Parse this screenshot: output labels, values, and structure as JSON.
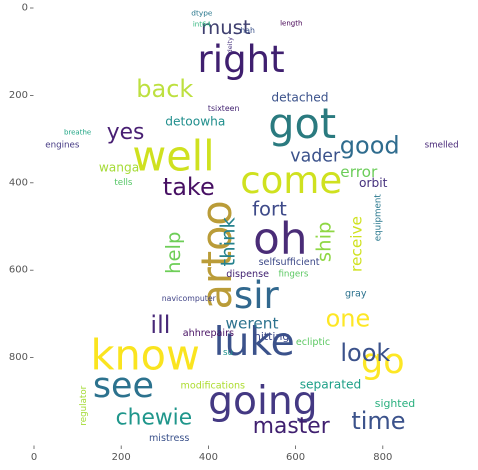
{
  "chart_data": {
    "type": "wordcloud",
    "title": "",
    "xlabel": "",
    "ylabel": "",
    "xlim": [
      0,
      1000
    ],
    "ylim": [
      0,
      1000
    ],
    "x_ticks": [
      0,
      200,
      400,
      600,
      800
    ],
    "y_ticks": [
      0,
      200,
      400,
      600,
      800
    ],
    "grid": false,
    "colormap": "viridis",
    "words": [
      {
        "text": "artoo",
        "x": 420,
        "y": 565,
        "size": 95,
        "color": "#ba9c38",
        "rotate": -90
      },
      {
        "text": "oh",
        "x": 565,
        "y": 530,
        "size": 100,
        "color": "#4a2c77"
      },
      {
        "text": "well",
        "x": 320,
        "y": 340,
        "size": 95,
        "color": "#cfe11f"
      },
      {
        "text": "got",
        "x": 615,
        "y": 265,
        "size": 95,
        "color": "#2a7a7f"
      },
      {
        "text": "right",
        "x": 475,
        "y": 118,
        "size": 85,
        "color": "#3f1f6f"
      },
      {
        "text": "come",
        "x": 590,
        "y": 395,
        "size": 85,
        "color": "#cfe11f"
      },
      {
        "text": "know",
        "x": 255,
        "y": 795,
        "size": 95,
        "color": "#fae41f"
      },
      {
        "text": "luke",
        "x": 505,
        "y": 765,
        "size": 90,
        "color": "#3b528b"
      },
      {
        "text": "going",
        "x": 525,
        "y": 900,
        "size": 90,
        "color": "#443983"
      },
      {
        "text": "go",
        "x": 800,
        "y": 810,
        "size": 80,
        "color": "#fde725"
      },
      {
        "text": "see",
        "x": 205,
        "y": 865,
        "size": 80,
        "color": "#2c728e"
      },
      {
        "text": "sir",
        "x": 510,
        "y": 658,
        "size": 85,
        "color": "#31688e"
      },
      {
        "text": "back",
        "x": 300,
        "y": 185,
        "size": 55,
        "color": "#bde040"
      },
      {
        "text": "must",
        "x": 440,
        "y": 45,
        "size": 45,
        "color": "#3f3f6f"
      },
      {
        "text": "good",
        "x": 770,
        "y": 315,
        "size": 55,
        "color": "#2f6c8e"
      },
      {
        "text": "yes",
        "x": 210,
        "y": 285,
        "size": 50,
        "color": "#481f73"
      },
      {
        "text": "vader",
        "x": 645,
        "y": 340,
        "size": 40,
        "color": "#3b528b"
      },
      {
        "text": "take",
        "x": 355,
        "y": 410,
        "size": 55,
        "color": "#471063"
      },
      {
        "text": "fort",
        "x": 540,
        "y": 460,
        "size": 45,
        "color": "#3e4a89"
      },
      {
        "text": "error",
        "x": 745,
        "y": 375,
        "size": 35,
        "color": "#6ccd5a"
      },
      {
        "text": "orbit",
        "x": 778,
        "y": 400,
        "size": 28,
        "color": "#46327e"
      },
      {
        "text": "wanga",
        "x": 195,
        "y": 365,
        "size": 28,
        "color": "#a5db36"
      },
      {
        "text": "detoowha",
        "x": 370,
        "y": 260,
        "size": 28,
        "color": "#218f8d"
      },
      {
        "text": "tells",
        "x": 205,
        "y": 400,
        "size": 20,
        "color": "#56c667"
      },
      {
        "text": "detached",
        "x": 610,
        "y": 205,
        "size": 28,
        "color": "#3b528b"
      },
      {
        "text": "help",
        "x": 320,
        "y": 560,
        "size": 45,
        "color": "#6ece58",
        "rotate": -90
      },
      {
        "text": "think",
        "x": 445,
        "y": 535,
        "size": 45,
        "color": "#26828e",
        "rotate": -90
      },
      {
        "text": "ship",
        "x": 665,
        "y": 535,
        "size": 45,
        "color": "#8fd744",
        "rotate": -90
      },
      {
        "text": "receive",
        "x": 740,
        "y": 540,
        "size": 35,
        "color": "#cfe11f",
        "rotate": -90
      },
      {
        "text": "equipment",
        "x": 790,
        "y": 480,
        "size": 20,
        "color": "#2a788e",
        "rotate": -90
      },
      {
        "text": "selfsufficient",
        "x": 585,
        "y": 582,
        "size": 22,
        "color": "#3e4a89"
      },
      {
        "text": "dispense",
        "x": 490,
        "y": 610,
        "size": 22,
        "color": "#3f1f6f"
      },
      {
        "text": "fingers",
        "x": 595,
        "y": 610,
        "size": 20,
        "color": "#5cc863"
      },
      {
        "text": "gray",
        "x": 738,
        "y": 655,
        "size": 22,
        "color": "#2c728e"
      },
      {
        "text": "one",
        "x": 720,
        "y": 710,
        "size": 55,
        "color": "#fde725"
      },
      {
        "text": "ill",
        "x": 290,
        "y": 725,
        "size": 55,
        "color": "#482878"
      },
      {
        "text": "werent",
        "x": 500,
        "y": 722,
        "size": 35,
        "color": "#2c728e"
      },
      {
        "text": "navicomputer",
        "x": 355,
        "y": 665,
        "size": 18,
        "color": "#414487"
      },
      {
        "text": "ahhrepairs",
        "x": 400,
        "y": 745,
        "size": 22,
        "color": "#471063"
      },
      {
        "text": "hitting",
        "x": 545,
        "y": 752,
        "size": 25,
        "color": "#3e4a89"
      },
      {
        "text": "ecliptic",
        "x": 640,
        "y": 765,
        "size": 22,
        "color": "#5cc863"
      },
      {
        "text": "look",
        "x": 760,
        "y": 790,
        "size": 55,
        "color": "#3b528b"
      },
      {
        "text": "su",
        "x": 445,
        "y": 790,
        "size": 20,
        "color": "#21918c"
      },
      {
        "text": "modifications",
        "x": 410,
        "y": 865,
        "size": 22,
        "color": "#addc30"
      },
      {
        "text": "separated",
        "x": 680,
        "y": 862,
        "size": 28,
        "color": "#1fa088"
      },
      {
        "text": "chewie",
        "x": 275,
        "y": 938,
        "size": 50,
        "color": "#1f968b"
      },
      {
        "text": "master",
        "x": 590,
        "y": 958,
        "size": 50,
        "color": "#3f1f6f"
      },
      {
        "text": "time",
        "x": 790,
        "y": 945,
        "size": 55,
        "color": "#3b528b"
      },
      {
        "text": "sighted",
        "x": 828,
        "y": 905,
        "size": 25,
        "color": "#2ab07f"
      },
      {
        "text": "mistress",
        "x": 310,
        "y": 985,
        "size": 22,
        "color": "#3b528b"
      },
      {
        "text": "regulator",
        "x": 115,
        "y": 910,
        "size": 20,
        "color": "#a5db36",
        "rotate": -90
      },
      {
        "text": "engines",
        "x": 65,
        "y": 315,
        "size": 20,
        "color": "#443983"
      },
      {
        "text": "breathe",
        "x": 100,
        "y": 285,
        "size": 16,
        "color": "#21a585"
      },
      {
        "text": "tsixteen",
        "x": 435,
        "y": 230,
        "size": 18,
        "color": "#3f1f6f"
      },
      {
        "text": "smelled",
        "x": 935,
        "y": 315,
        "size": 20,
        "color": "#482878"
      },
      {
        "text": "dtype",
        "x": 385,
        "y": 12,
        "size": 17,
        "color": "#2a788e"
      },
      {
        "text": "int64",
        "x": 385,
        "y": 38,
        "size": 16,
        "color": "#2fb47c"
      },
      {
        "text": "hah",
        "x": 490,
        "y": 52,
        "size": 18,
        "color": "#3b528b"
      },
      {
        "text": "length",
        "x": 590,
        "y": 35,
        "size": 16,
        "color": "#440154"
      },
      {
        "text": "deity",
        "x": 450,
        "y": 85,
        "size": 15,
        "color": "#46327e",
        "rotate": -90
      }
    ]
  }
}
